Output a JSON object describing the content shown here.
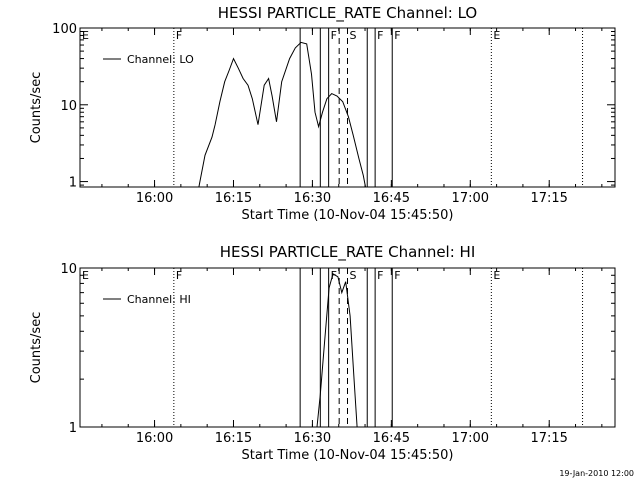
{
  "footer_timestamp": "19-Jan-2010 12:00",
  "colors": {
    "background": "#ffffff",
    "foreground": "#000000"
  },
  "chart_data": [
    {
      "type": "line",
      "title": "HESSI PARTICLE_RATE Channel: LO",
      "xlabel": "Start Time (10-Nov-04 15:45:50)",
      "ylabel": "Counts/sec",
      "yscale": "log",
      "xlim": [
        "15:45:50",
        "17:27:30"
      ],
      "ylim": [
        0.85,
        100
      ],
      "x_ticks": [
        "16:00",
        "16:15",
        "16:30",
        "16:45",
        "17:00",
        "17:15"
      ],
      "y_ticks": [
        "1",
        "10",
        "100"
      ],
      "legend": {
        "position": "top-left",
        "entries": [
          "Channel: LO"
        ]
      },
      "grid": false,
      "series": [
        {
          "name": "Channel: LO",
          "x": [
            "16:08:26",
            "16:08:37",
            "16:09:35",
            "16:10:55",
            "16:11:30",
            "16:12:25",
            "16:13:20",
            "16:14:10",
            "16:15:00",
            "16:15:55",
            "16:16:50",
            "16:17:45",
            "16:18:35",
            "16:19:40",
            "16:20:50",
            "16:21:40",
            "16:22:20",
            "16:23:10",
            "16:24:10",
            "16:25:40",
            "16:26:45",
            "16:27:50",
            "16:28:55",
            "16:29:50",
            "16:30:30",
            "16:31:10",
            "16:31:55",
            "16:32:45",
            "16:33:40",
            "16:34:40",
            "16:35:45",
            "16:36:50",
            "16:37:45",
            "16:38:50",
            "16:39:40",
            "16:40:05"
          ],
          "y": [
            0.85,
            1.0,
            2.2,
            3.8,
            5.5,
            11,
            20,
            28,
            40,
            30,
            22,
            18,
            12,
            5.5,
            18,
            22,
            13,
            6,
            20,
            40,
            55,
            65,
            62,
            25,
            8,
            5.2,
            8,
            12,
            14,
            13,
            11,
            7,
            4,
            2,
            1.2,
            0.85
          ]
        }
      ],
      "markers": [
        {
          "label": "E",
          "time": "15:45:50",
          "style": "dotted"
        },
        {
          "label": "F",
          "time": "16:03:40",
          "style": "dotted"
        },
        {
          "label": "",
          "time": "16:27:40",
          "style": "solid"
        },
        {
          "label": "",
          "time": "16:31:30",
          "style": "solid"
        },
        {
          "label": "F",
          "time": "16:33:05",
          "style": "solid"
        },
        {
          "label": "",
          "time": "16:35:05",
          "style": "dashed"
        },
        {
          "label": "S",
          "time": "16:36:40",
          "style": "dashed"
        },
        {
          "label": "",
          "time": "16:40:25",
          "style": "solid"
        },
        {
          "label": "F",
          "time": "16:41:55",
          "style": "solid"
        },
        {
          "label": "F",
          "time": "16:45:10",
          "style": "solid"
        },
        {
          "label": "E",
          "time": "17:04:00",
          "style": "dotted"
        },
        {
          "label": "",
          "time": "17:21:20",
          "style": "dotted"
        }
      ]
    },
    {
      "type": "line",
      "title": "HESSI PARTICLE_RATE Channel: HI",
      "xlabel": "Start Time (10-Nov-04 15:45:50)",
      "ylabel": "Counts/sec",
      "yscale": "log",
      "xlim": [
        "15:45:50",
        "17:27:30"
      ],
      "ylim": [
        1,
        10
      ],
      "x_ticks": [
        "16:00",
        "16:15",
        "16:30",
        "16:45",
        "17:00",
        "17:15"
      ],
      "y_ticks": [
        "1",
        "10"
      ],
      "legend": {
        "position": "top-left",
        "entries": [
          "Channel: HI"
        ]
      },
      "grid": false,
      "series": [
        {
          "name": "Channel: HI",
          "x": [
            "16:30:52",
            "16:31:30",
            "16:32:20",
            "16:33:10",
            "16:33:55",
            "16:34:50",
            "16:35:35",
            "16:36:20",
            "16:37:10",
            "16:38:00",
            "16:38:30"
          ],
          "y": [
            1.0,
            1.6,
            3.5,
            7.5,
            9.2,
            8.8,
            7.0,
            8.2,
            5.0,
            1.8,
            1.0
          ]
        }
      ],
      "markers": [
        {
          "label": "E",
          "time": "15:45:50",
          "style": "dotted"
        },
        {
          "label": "F",
          "time": "16:03:40",
          "style": "dotted"
        },
        {
          "label": "",
          "time": "16:27:40",
          "style": "solid"
        },
        {
          "label": "",
          "time": "16:31:30",
          "style": "solid"
        },
        {
          "label": "F",
          "time": "16:33:05",
          "style": "solid"
        },
        {
          "label": "",
          "time": "16:35:05",
          "style": "dashed"
        },
        {
          "label": "S",
          "time": "16:36:40",
          "style": "dashed"
        },
        {
          "label": "",
          "time": "16:40:25",
          "style": "solid"
        },
        {
          "label": "F",
          "time": "16:41:55",
          "style": "solid"
        },
        {
          "label": "F",
          "time": "16:45:10",
          "style": "solid"
        },
        {
          "label": "E",
          "time": "17:04:00",
          "style": "dotted"
        },
        {
          "label": "",
          "time": "17:21:20",
          "style": "dotted"
        }
      ]
    }
  ]
}
